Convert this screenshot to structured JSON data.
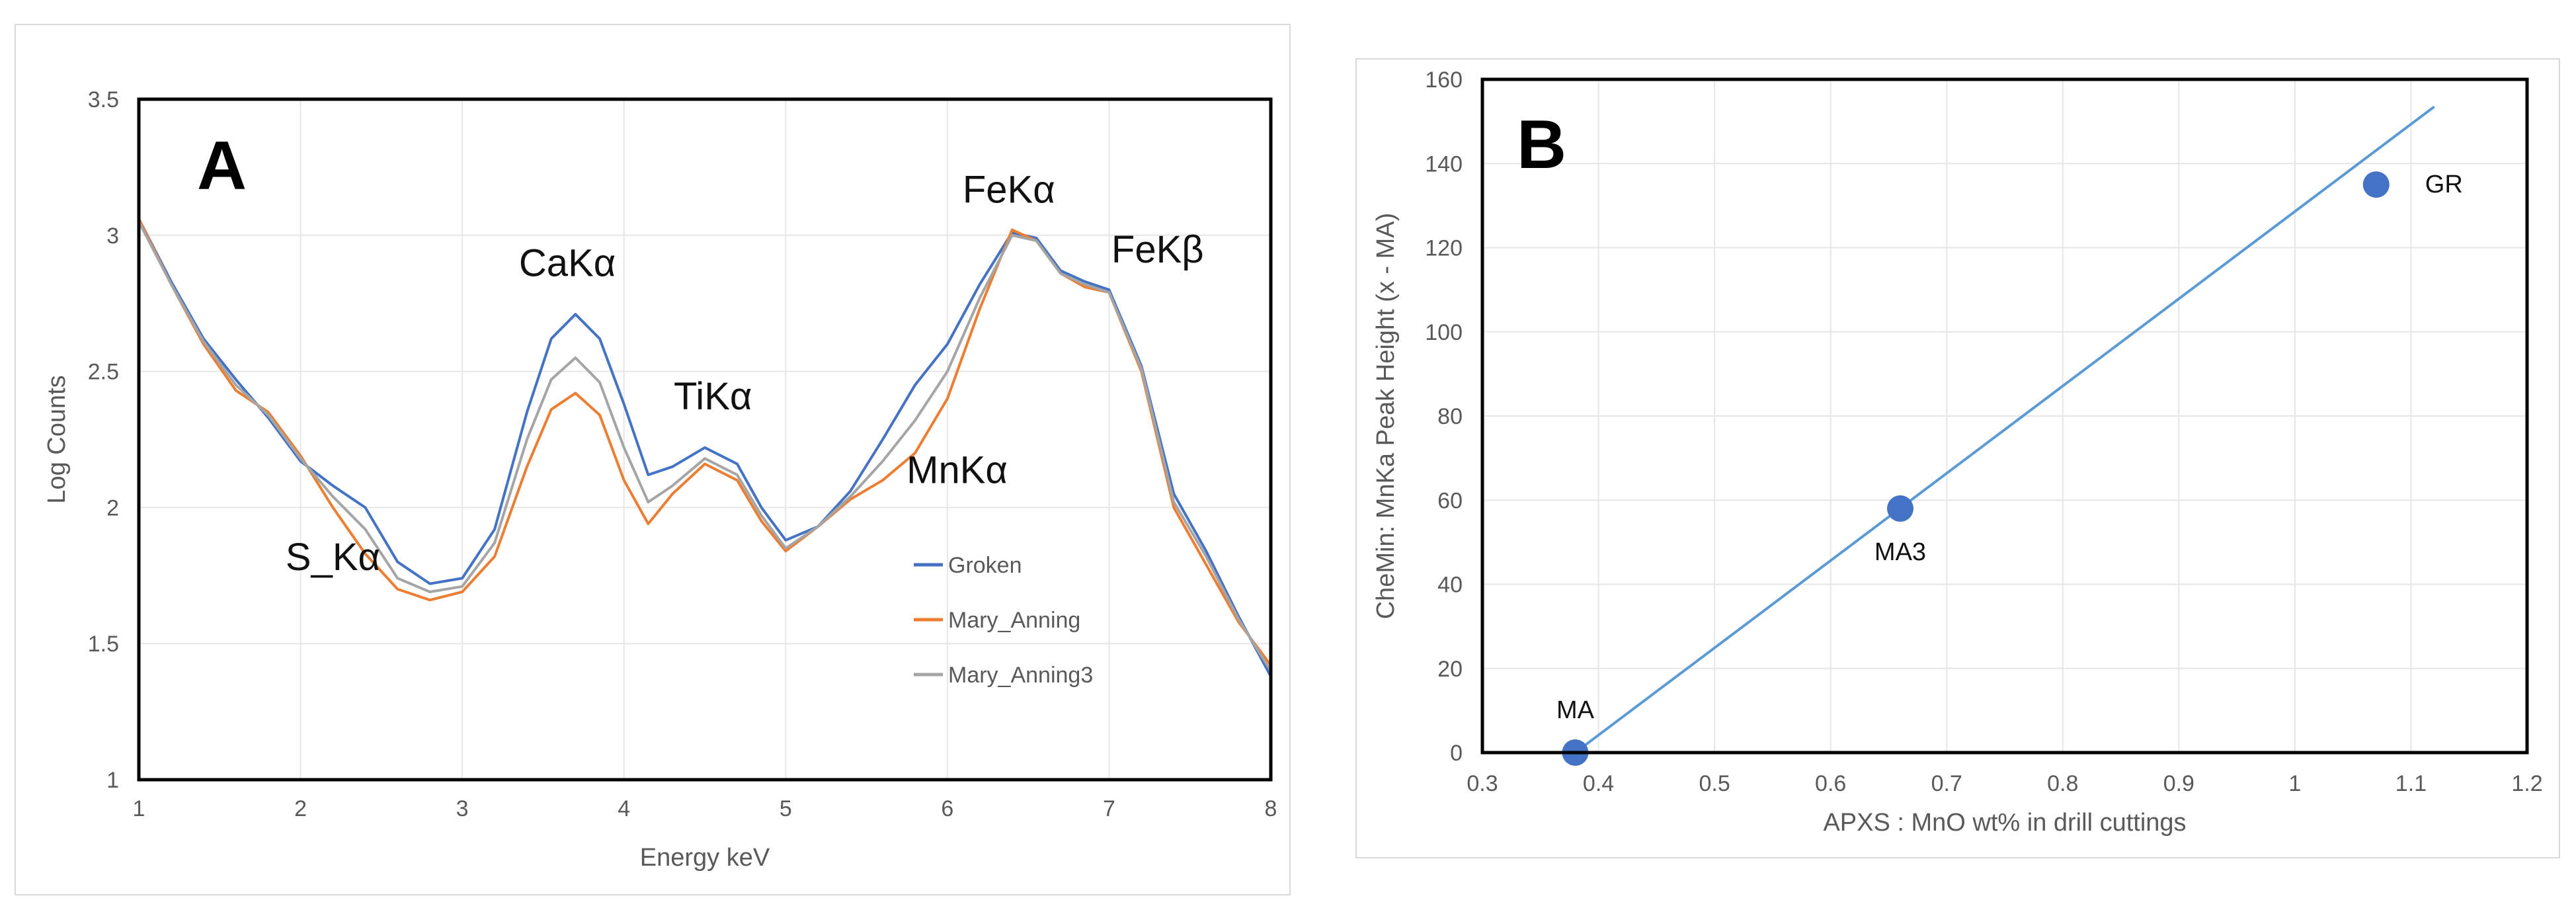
{
  "chart_data": [
    {
      "panel": "A",
      "type": "line",
      "title": "",
      "panel_label": "A",
      "xlabel": "Energy keV",
      "ylabel": "Log Counts",
      "xlim": [
        1,
        8
      ],
      "ylim": [
        1,
        3.5
      ],
      "xticks": [
        "1",
        "2",
        "3",
        "4",
        "5",
        "6",
        "7",
        "8"
      ],
      "yticks": [
        "1",
        "1.5",
        "2",
        "2.5",
        "3",
        "3.5"
      ],
      "grid": true,
      "legend_position": "bottom-right inside",
      "series": [
        {
          "name": "Groken",
          "color": "#4472C4",
          "x": [
            1.0,
            1.2,
            1.4,
            1.6,
            1.8,
            2.0,
            2.2,
            2.4,
            2.6,
            2.8,
            3.0,
            3.2,
            3.4,
            3.55,
            3.7,
            3.85,
            4.0,
            4.15,
            4.3,
            4.5,
            4.7,
            4.85,
            5.0,
            5.2,
            5.4,
            5.6,
            5.8,
            6.0,
            6.2,
            6.4,
            6.55,
            6.7,
            6.85,
            7.0,
            7.2,
            7.4,
            7.6,
            7.8,
            8.0
          ],
          "y": [
            3.06,
            2.83,
            2.62,
            2.47,
            2.33,
            2.17,
            2.08,
            2.0,
            1.8,
            1.72,
            1.74,
            1.92,
            2.35,
            2.62,
            2.71,
            2.62,
            2.38,
            2.12,
            2.15,
            2.22,
            2.16,
            2.0,
            1.88,
            1.93,
            2.06,
            2.25,
            2.45,
            2.6,
            2.82,
            3.01,
            2.99,
            2.87,
            2.83,
            2.8,
            2.52,
            2.05,
            1.84,
            1.6,
            1.38
          ]
        },
        {
          "name": "Mary_Anning",
          "color": "#ED7D31",
          "x": [
            1.0,
            1.2,
            1.4,
            1.6,
            1.8,
            2.0,
            2.2,
            2.4,
            2.6,
            2.8,
            3.0,
            3.2,
            3.4,
            3.55,
            3.7,
            3.85,
            4.0,
            4.15,
            4.3,
            4.5,
            4.7,
            4.85,
            5.0,
            5.2,
            5.4,
            5.6,
            5.8,
            6.0,
            6.2,
            6.4,
            6.55,
            6.7,
            6.85,
            7.0,
            7.2,
            7.4,
            7.6,
            7.8,
            8.0
          ],
          "y": [
            3.06,
            2.82,
            2.6,
            2.43,
            2.35,
            2.19,
            2.0,
            1.83,
            1.7,
            1.66,
            1.69,
            1.82,
            2.15,
            2.36,
            2.42,
            2.34,
            2.1,
            1.94,
            2.05,
            2.16,
            2.1,
            1.95,
            1.84,
            1.93,
            2.03,
            2.1,
            2.2,
            2.4,
            2.73,
            3.02,
            2.98,
            2.86,
            2.81,
            2.79,
            2.5,
            2.0,
            1.79,
            1.58,
            1.42
          ]
        },
        {
          "name": "Mary_Anning3",
          "color": "#A5A5A5",
          "x": [
            1.0,
            1.2,
            1.4,
            1.6,
            1.8,
            2.0,
            2.2,
            2.4,
            2.6,
            2.8,
            3.0,
            3.2,
            3.4,
            3.55,
            3.7,
            3.85,
            4.0,
            4.15,
            4.3,
            4.5,
            4.7,
            4.85,
            5.0,
            5.2,
            5.4,
            5.6,
            5.8,
            6.0,
            6.2,
            6.4,
            6.55,
            6.7,
            6.85,
            7.0,
            7.2,
            7.4,
            7.6,
            7.8,
            8.0
          ],
          "y": [
            3.05,
            2.82,
            2.61,
            2.45,
            2.34,
            2.18,
            2.04,
            1.92,
            1.74,
            1.69,
            1.71,
            1.87,
            2.25,
            2.47,
            2.55,
            2.46,
            2.22,
            2.02,
            2.08,
            2.18,
            2.12,
            1.97,
            1.85,
            1.93,
            2.04,
            2.17,
            2.32,
            2.5,
            2.77,
            3.0,
            2.98,
            2.86,
            2.82,
            2.79,
            2.51,
            2.02,
            1.82,
            1.59,
            1.4
          ]
        }
      ],
      "annotations": [
        {
          "text": "S_Kα",
          "x": 2.2,
          "y": 1.77
        },
        {
          "text": "CaKα",
          "x": 3.65,
          "y": 2.85
        },
        {
          "text": "TiKα",
          "x": 4.55,
          "y": 2.36
        },
        {
          "text": "MnKα",
          "x": 6.06,
          "y": 2.09
        },
        {
          "text": "FeKα",
          "x": 6.38,
          "y": 3.12
        },
        {
          "text": "FeKβ",
          "x": 7.3,
          "y": 2.9
        }
      ]
    },
    {
      "panel": "B",
      "type": "scatter",
      "title": "",
      "panel_label": "B",
      "xlabel": "APXS : MnO wt% in drill cuttings",
      "ylabel": "CheMin: MnKa Peak Height (x - MA)",
      "xlim": [
        0.3,
        1.2
      ],
      "ylim": [
        0,
        160
      ],
      "xticks": [
        "0.3",
        "0.4",
        "0.5",
        "0.6",
        "0.7",
        "0.8",
        "0.9",
        "1",
        "1.1",
        "1.2"
      ],
      "yticks": [
        "0",
        "20",
        "40",
        "60",
        "80",
        "100",
        "120",
        "140",
        "160"
      ],
      "grid": true,
      "marker_color": "#4472C4",
      "points": [
        {
          "label": "MA",
          "x": 0.38,
          "y": 0
        },
        {
          "label": "MA3",
          "x": 0.66,
          "y": 58
        },
        {
          "label": "GR",
          "x": 1.07,
          "y": 135
        }
      ],
      "trendline": {
        "color": "#5B9BD5",
        "x": [
          0.38,
          1.12
        ],
        "y": [
          0,
          153.5
        ]
      }
    }
  ]
}
